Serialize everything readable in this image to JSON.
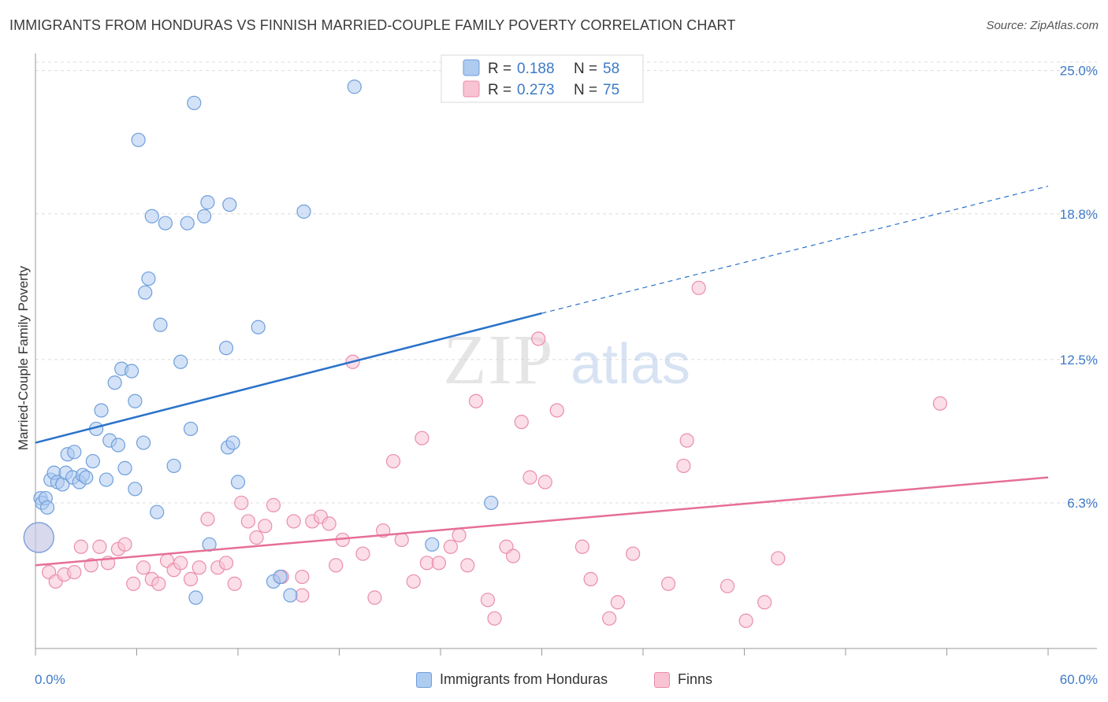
{
  "title": "IMMIGRANTS FROM HONDURAS VS FINNISH MARRIED-COUPLE FAMILY POVERTY CORRELATION CHART",
  "source": "Source: ZipAtlas.com",
  "watermark": {
    "zip": "ZIP",
    "atlas": "atlas"
  },
  "colors": {
    "blue_fill": "#aecbf0",
    "blue_stroke": "#6f9fdc",
    "blue_line": "#2a72c9",
    "pink_fill": "#f8c3d3",
    "pink_stroke": "#ea8eab",
    "pink_line": "#e66f96",
    "tick_label": "#3d7ac7",
    "grid": "#dcdcdc",
    "axis": "#9a9a9a"
  },
  "legend_top": [
    {
      "r_label": "R =",
      "r_value": "0.188",
      "n_label": "N =",
      "n_value": "58"
    },
    {
      "r_label": "R =",
      "r_value": "0.273",
      "n_label": "N =",
      "n_value": "75"
    }
  ],
  "legend_bottom": [
    "Immigrants from Honduras",
    "Finns"
  ],
  "chart_data": {
    "type": "scatter",
    "title": "IMMIGRANTS FROM HONDURAS VS FINNISH MARRIED-COUPLE FAMILY POVERTY CORRELATION CHART",
    "xlabel": "",
    "ylabel": "Married-Couple Family Poverty",
    "xlim": [
      0,
      60
    ],
    "ylim": [
      0,
      25.5
    ],
    "x_tick_labels": [
      "0.0%",
      "60.0%"
    ],
    "y_ticks": [
      6.3,
      12.5,
      18.8,
      25.0
    ],
    "y_tick_labels": [
      "6.3%",
      "12.5%",
      "18.8%",
      "25.0%"
    ],
    "grid": "horizontal dashed",
    "legend_position": "top-center",
    "series": [
      {
        "name": "Immigrants from Honduras",
        "color": "#aecbf0",
        "r": 0.188,
        "n": 58,
        "trend": {
          "x": [
            0,
            30
          ],
          "y": [
            8.9,
            14.5
          ]
        },
        "trend_extended": {
          "x": [
            30,
            60
          ],
          "y": [
            14.5,
            20.0
          ]
        },
        "points": [
          [
            0.2,
            4.8
          ],
          [
            0.3,
            6.5
          ],
          [
            0.4,
            6.3
          ],
          [
            0.6,
            6.5
          ],
          [
            0.7,
            6.1
          ],
          [
            0.9,
            7.3
          ],
          [
            1.1,
            7.6
          ],
          [
            1.3,
            7.2
          ],
          [
            1.6,
            7.1
          ],
          [
            1.8,
            7.6
          ],
          [
            1.9,
            8.4
          ],
          [
            2.2,
            7.4
          ],
          [
            2.3,
            8.5
          ],
          [
            2.6,
            7.2
          ],
          [
            2.8,
            7.5
          ],
          [
            3.0,
            7.4
          ],
          [
            3.4,
            8.1
          ],
          [
            3.6,
            9.5
          ],
          [
            3.9,
            10.3
          ],
          [
            4.2,
            7.3
          ],
          [
            4.4,
            9.0
          ],
          [
            4.7,
            11.5
          ],
          [
            4.9,
            8.8
          ],
          [
            5.1,
            12.1
          ],
          [
            5.3,
            7.8
          ],
          [
            5.7,
            12.0
          ],
          [
            5.9,
            6.9
          ],
          [
            5.9,
            10.7
          ],
          [
            6.4,
            8.9
          ],
          [
            6.5,
            15.4
          ],
          [
            6.7,
            16.0
          ],
          [
            6.9,
            18.7
          ],
          [
            7.2,
            5.9
          ],
          [
            7.4,
            14.0
          ],
          [
            7.7,
            18.4
          ],
          [
            8.2,
            7.9
          ],
          [
            8.6,
            12.4
          ],
          [
            9.0,
            18.4
          ],
          [
            9.2,
            9.5
          ],
          [
            9.4,
            23.6
          ],
          [
            9.5,
            2.2
          ],
          [
            10.0,
            18.7
          ],
          [
            10.3,
            4.5
          ],
          [
            11.3,
            13.0
          ],
          [
            11.4,
            8.7
          ],
          [
            11.5,
            19.2
          ],
          [
            11.7,
            8.9
          ],
          [
            12.0,
            7.2
          ],
          [
            13.2,
            13.9
          ],
          [
            14.1,
            2.9
          ],
          [
            14.5,
            3.1
          ],
          [
            15.1,
            2.3
          ],
          [
            15.9,
            18.9
          ],
          [
            18.9,
            24.3
          ],
          [
            23.5,
            4.5
          ],
          [
            27.0,
            6.3
          ],
          [
            6.1,
            22.0
          ],
          [
            10.2,
            19.3
          ]
        ]
      },
      {
        "name": "Finns",
        "color": "#f8c3d3",
        "r": 0.273,
        "n": 75,
        "trend": {
          "x": [
            0,
            60
          ],
          "y": [
            3.6,
            7.4
          ]
        },
        "points": [
          [
            0.2,
            4.8
          ],
          [
            0.8,
            3.3
          ],
          [
            1.2,
            2.9
          ],
          [
            1.7,
            3.2
          ],
          [
            2.3,
            3.3
          ],
          [
            2.7,
            4.4
          ],
          [
            3.3,
            3.6
          ],
          [
            3.8,
            4.4
          ],
          [
            4.3,
            3.7
          ],
          [
            4.9,
            4.3
          ],
          [
            5.3,
            4.5
          ],
          [
            5.8,
            2.8
          ],
          [
            6.4,
            3.5
          ],
          [
            6.9,
            3.0
          ],
          [
            7.3,
            2.8
          ],
          [
            7.8,
            3.8
          ],
          [
            8.2,
            3.4
          ],
          [
            8.6,
            3.7
          ],
          [
            9.2,
            3.0
          ],
          [
            9.7,
            3.5
          ],
          [
            10.2,
            5.6
          ],
          [
            10.8,
            3.5
          ],
          [
            11.3,
            3.7
          ],
          [
            11.8,
            2.8
          ],
          [
            12.2,
            6.3
          ],
          [
            12.6,
            5.5
          ],
          [
            13.1,
            4.8
          ],
          [
            13.6,
            5.3
          ],
          [
            14.1,
            6.2
          ],
          [
            14.6,
            3.1
          ],
          [
            15.3,
            5.5
          ],
          [
            15.8,
            2.3
          ],
          [
            16.4,
            5.5
          ],
          [
            16.9,
            5.7
          ],
          [
            17.4,
            5.4
          ],
          [
            17.8,
            3.6
          ],
          [
            18.2,
            4.7
          ],
          [
            18.8,
            12.4
          ],
          [
            19.4,
            4.1
          ],
          [
            20.1,
            2.2
          ],
          [
            20.6,
            5.1
          ],
          [
            21.2,
            8.1
          ],
          [
            21.7,
            4.7
          ],
          [
            22.4,
            2.9
          ],
          [
            22.9,
            9.1
          ],
          [
            23.2,
            3.7
          ],
          [
            23.9,
            3.7
          ],
          [
            24.6,
            4.4
          ],
          [
            25.1,
            4.9
          ],
          [
            25.6,
            3.6
          ],
          [
            26.1,
            10.7
          ],
          [
            26.8,
            2.1
          ],
          [
            27.2,
            1.3
          ],
          [
            27.9,
            4.4
          ],
          [
            28.3,
            4.0
          ],
          [
            28.8,
            9.8
          ],
          [
            29.3,
            7.4
          ],
          [
            29.8,
            13.4
          ],
          [
            30.2,
            7.2
          ],
          [
            30.9,
            10.3
          ],
          [
            32.4,
            4.4
          ],
          [
            32.9,
            3.0
          ],
          [
            34.0,
            1.3
          ],
          [
            34.5,
            2.0
          ],
          [
            35.4,
            4.1
          ],
          [
            37.5,
            2.8
          ],
          [
            38.4,
            7.9
          ],
          [
            38.6,
            9.0
          ],
          [
            39.3,
            15.6
          ],
          [
            41.0,
            2.7
          ],
          [
            42.1,
            1.2
          ],
          [
            43.2,
            2.0
          ],
          [
            44.0,
            3.9
          ],
          [
            53.6,
            10.6
          ],
          [
            15.8,
            3.1
          ]
        ]
      }
    ]
  }
}
